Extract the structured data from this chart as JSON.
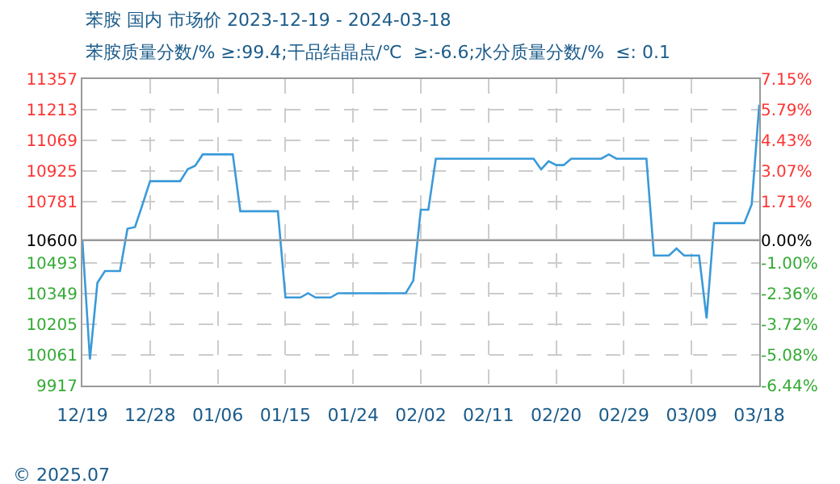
{
  "chart_data": {
    "type": "line",
    "title": "苯胺 国内 市场价 2023-12-19 - 2024-03-18",
    "subtitle": "苯胺质量分数/% ≥:99.4;干品结晶点/℃  ≥:-6.6;水分质量分数/%  ≤: 0.1",
    "x": [
      "2023-12-19",
      "2023-12-20",
      "2023-12-21",
      "2023-12-22",
      "2023-12-24",
      "2023-12-25",
      "2023-12-26",
      "2023-12-27",
      "2023-12-28",
      "2024-01-01",
      "2024-01-02",
      "2024-01-03",
      "2024-01-04",
      "2024-01-08",
      "2024-01-09",
      "2024-01-14",
      "2024-01-15",
      "2024-01-17",
      "2024-01-18",
      "2024-01-19",
      "2024-01-21",
      "2024-01-22",
      "2024-01-31",
      "2024-02-01",
      "2024-02-02",
      "2024-02-03",
      "2024-02-04",
      "2024-02-17",
      "2024-02-18",
      "2024-02-19",
      "2024-02-20",
      "2024-02-21",
      "2024-02-22",
      "2024-02-26",
      "2024-02-27",
      "2024-02-28",
      "2024-03-03",
      "2024-03-04",
      "2024-03-06",
      "2024-03-07",
      "2024-03-08",
      "2024-03-10",
      "2024-03-11",
      "2024-03-12",
      "2024-03-16",
      "2024-03-17",
      "2024-03-18"
    ],
    "series": [
      {
        "color": "#3a9ad9",
        "values": [
          10600,
          10040,
          10400,
          10455,
          10455,
          10654,
          10662,
          10768,
          10877,
          10877,
          10933,
          10950,
          11003,
          11003,
          10736,
          10736,
          10331,
          10331,
          10351,
          10331,
          10331,
          10351,
          10351,
          10410,
          10743,
          10743,
          10983,
          10983,
          10933,
          10971,
          10953,
          10953,
          10983,
          10983,
          11003,
          10983,
          10983,
          10528,
          10528,
          10561,
          10528,
          10528,
          10233,
          10680,
          10680,
          10768,
          11236
        ]
      }
    ],
    "xlim": [
      "2023-12-19",
      "2024-03-18"
    ],
    "xticks": [
      {
        "value": "2023-12-19",
        "label": "12/19"
      },
      {
        "value": "2023-12-28",
        "label": "12/28"
      },
      {
        "value": "2024-01-06",
        "label": "01/06"
      },
      {
        "value": "2024-01-15",
        "label": "01/15"
      },
      {
        "value": "2024-01-24",
        "label": "01/24"
      },
      {
        "value": "2024-02-02",
        "label": "02/02"
      },
      {
        "value": "2024-02-11",
        "label": "02/11"
      },
      {
        "value": "2024-02-20",
        "label": "02/20"
      },
      {
        "value": "2024-02-29",
        "label": "02/29"
      },
      {
        "value": "2024-03-09",
        "label": "03/09"
      },
      {
        "value": "2024-03-18",
        "label": "03/18"
      }
    ],
    "ylim": [
      9917,
      11357
    ],
    "yticks": [
      11357,
      11213,
      11069,
      10925,
      10781,
      10600,
      10493,
      10349,
      10205,
      10061,
      9917
    ],
    "y2lim": [
      -6.44,
      7.15
    ],
    "y2ticks": [
      {
        "value": 7.15,
        "label": "7.15%"
      },
      {
        "value": 5.79,
        "label": "5.79%"
      },
      {
        "value": 4.43,
        "label": "4.43%"
      },
      {
        "value": 3.07,
        "label": "3.07%"
      },
      {
        "value": 1.71,
        "label": "1.71%"
      },
      {
        "value": 0,
        "label": "0.00%"
      },
      {
        "value": -1.0,
        "label": "-1.00%"
      },
      {
        "value": -2.36,
        "label": "-2.36%"
      },
      {
        "value": -3.72,
        "label": "-3.72%"
      },
      {
        "value": -5.08,
        "label": "-5.08%"
      },
      {
        "value": -6.44,
        "label": "-6.44%"
      }
    ],
    "ref_lines": [
      {
        "axis": "y",
        "value": 10600,
        "color": "#999999"
      }
    ],
    "grid": true,
    "legend": false,
    "marker": "none",
    "line_style": "solid",
    "annotations": [
      "© 2025.07"
    ]
  }
}
